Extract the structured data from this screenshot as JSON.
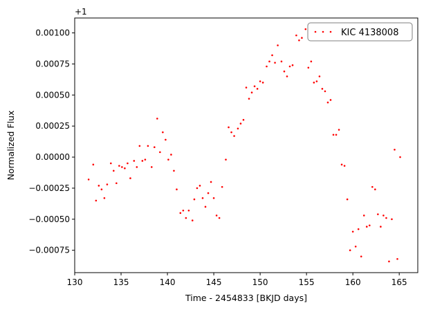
{
  "chart_data": {
    "type": "scatter",
    "xlabel": "Time - 2454833 [BKJD days]",
    "ylabel": "Normalized Flux",
    "offset_label": "+1",
    "xlim": [
      130,
      167
    ],
    "ylim": [
      -0.00093,
      0.00112
    ],
    "x_ticks": [
      130,
      135,
      140,
      145,
      150,
      155,
      160,
      165
    ],
    "x_tick_labels": [
      "130",
      "135",
      "140",
      "145",
      "150",
      "155",
      "160",
      "165"
    ],
    "y_ticks": [
      -0.00075,
      -0.0005,
      -0.00025,
      0.0,
      0.00025,
      0.0005,
      0.00075,
      0.001
    ],
    "y_tick_labels": [
      "−0.00075",
      "−0.00050",
      "−0.00025",
      "0.00000",
      "0.00025",
      "0.00050",
      "0.00075",
      "0.00100"
    ],
    "grid": false,
    "legend_position": "top-right",
    "series": [
      {
        "name": "KIC 4138008",
        "color": "#ff0000",
        "x": [
          131.5,
          132.0,
          132.3,
          132.6,
          132.9,
          133.2,
          133.5,
          133.9,
          134.2,
          134.5,
          134.8,
          135.1,
          135.4,
          135.7,
          136.0,
          136.4,
          136.7,
          137.0,
          137.3,
          137.6,
          137.9,
          138.3,
          138.6,
          138.9,
          139.2,
          139.5,
          139.8,
          140.1,
          140.4,
          140.7,
          141.0,
          141.4,
          141.7,
          142.0,
          142.3,
          142.7,
          142.9,
          143.2,
          143.5,
          143.8,
          144.1,
          144.4,
          144.7,
          145.0,
          145.3,
          145.6,
          145.9,
          146.3,
          146.6,
          146.9,
          147.2,
          147.6,
          147.9,
          148.2,
          148.5,
          148.8,
          149.1,
          149.4,
          149.7,
          150.0,
          150.3,
          150.7,
          151.0,
          151.3,
          151.6,
          151.9,
          152.3,
          152.6,
          152.9,
          153.2,
          153.5,
          153.9,
          154.2,
          154.5,
          154.9,
          155.2,
          155.5,
          155.8,
          156.1,
          156.4,
          156.7,
          157.0,
          157.3,
          157.6,
          157.9,
          158.2,
          158.5,
          158.8,
          159.1,
          159.4,
          159.7,
          160.0,
          160.3,
          160.6,
          160.9,
          161.2,
          161.5,
          161.8,
          162.1,
          162.4,
          162.7,
          163.0,
          163.3,
          163.6,
          163.9,
          164.2,
          164.5,
          164.8,
          165.1
        ],
        "y": [
          -0.00018,
          -6e-05,
          -0.00035,
          -0.00023,
          -0.00026,
          -0.00033,
          -0.00022,
          -5e-05,
          -0.00011,
          -0.00021,
          -7e-05,
          -8e-05,
          -9e-05,
          -5e-05,
          -0.00017,
          -3e-05,
          -8e-05,
          9e-05,
          -3e-05,
          -2e-05,
          9e-05,
          -8e-05,
          8e-05,
          0.00031,
          4e-05,
          0.0002,
          0.00014,
          -2e-05,
          2e-05,
          -0.00011,
          -0.00026,
          -0.00045,
          -0.00043,
          -0.00049,
          -0.00043,
          -0.00051,
          -0.00034,
          -0.00025,
          -0.00023,
          -0.00033,
          -0.0004,
          -0.00029,
          -0.0002,
          -0.00033,
          -0.00047,
          -0.00049,
          -0.00024,
          -2e-05,
          0.00024,
          0.0002,
          0.00017,
          0.00023,
          0.00027,
          0.0003,
          0.00056,
          0.00047,
          0.00052,
          0.00057,
          0.00055,
          0.00061,
          0.0006,
          0.00073,
          0.00077,
          0.00082,
          0.00076,
          0.0009,
          0.00077,
          0.00069,
          0.00065,
          0.00073,
          0.00074,
          0.00098,
          0.00094,
          0.00096,
          0.00103,
          0.00072,
          0.00077,
          0.0006,
          0.00061,
          0.00065,
          0.00055,
          0.00053,
          0.00044,
          0.00046,
          0.00018,
          0.00018,
          0.00022,
          -6e-05,
          -7e-05,
          -0.00034,
          -0.00075,
          -0.0006,
          -0.00072,
          -0.00058,
          -0.0008,
          -0.00047,
          -0.00056,
          -0.00055,
          -0.00024,
          -0.00026,
          -0.00046,
          -0.00056,
          -0.00047,
          -0.00049,
          -0.00084,
          -0.0005,
          6e-05,
          -0.00082,
          0.0
        ]
      }
    ]
  }
}
